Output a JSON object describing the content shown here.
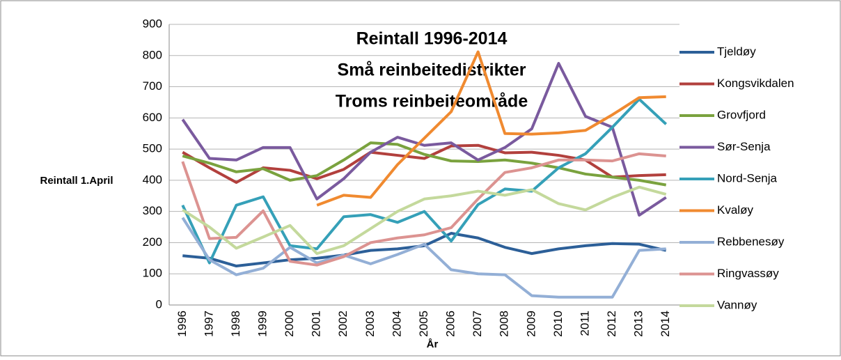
{
  "chart_data": {
    "type": "line",
    "title": [
      "Reintall 1996-2014",
      "Små reinbeitedistrikter",
      "Troms reinbeiteområde"
    ],
    "ylabel": "Reintall 1.April",
    "xlabel": "År",
    "categories": [
      "1996",
      "1997",
      "1998",
      "1999",
      "2000",
      "2001",
      "2002",
      "2003",
      "2004",
      "2005",
      "2006",
      "2007",
      "2008",
      "2009",
      "2010",
      "2011",
      "2012",
      "2013",
      "2014"
    ],
    "ylim": [
      0,
      900
    ],
    "yticks": [
      0,
      100,
      200,
      300,
      400,
      500,
      600,
      700,
      800,
      900
    ],
    "grid": true,
    "legend": "right",
    "series": [
      {
        "name": "Tjeldøy",
        "color": "#2c5f98",
        "values": [
          158,
          150,
          125,
          135,
          145,
          150,
          160,
          175,
          180,
          190,
          230,
          215,
          185,
          165,
          180,
          190,
          197,
          195,
          175
        ]
      },
      {
        "name": "Kongsvikdalen",
        "color": "#b2403d",
        "values": [
          490,
          440,
          393,
          440,
          432,
          405,
          435,
          490,
          480,
          470,
          510,
          512,
          488,
          490,
          480,
          465,
          410,
          415,
          418
        ]
      },
      {
        "name": "Grovfjord",
        "color": "#7aa23e",
        "values": [
          478,
          455,
          427,
          437,
          400,
          415,
          465,
          520,
          515,
          483,
          462,
          460,
          465,
          455,
          440,
          420,
          410,
          400,
          385
        ]
      },
      {
        "name": "Sør-Senja",
        "color": "#7a5a9e",
        "values": [
          595,
          470,
          465,
          505,
          505,
          340,
          405,
          490,
          538,
          512,
          520,
          465,
          505,
          565,
          775,
          605,
          570,
          288,
          345
        ]
      },
      {
        "name": "Nord-Senja",
        "color": "#35a0b8",
        "values": [
          320,
          135,
          320,
          347,
          190,
          180,
          283,
          290,
          265,
          300,
          205,
          322,
          372,
          365,
          440,
          485,
          570,
          660,
          580
        ]
      },
      {
        "name": "Kvaløy",
        "color": "#f08a30",
        "values": [
          null,
          null,
          null,
          null,
          null,
          320,
          352,
          345,
          450,
          535,
          620,
          812,
          550,
          548,
          552,
          560,
          610,
          665,
          668
        ]
      },
      {
        "name": "Rebbenesøy",
        "color": "#93afd6",
        "values": [
          280,
          145,
          97,
          118,
          185,
          135,
          160,
          132,
          162,
          195,
          113,
          100,
          97,
          30,
          25,
          25,
          25,
          175,
          180
        ]
      },
      {
        "name": "Ringvassøy",
        "color": "#dc9391",
        "values": [
          460,
          213,
          217,
          302,
          140,
          128,
          155,
          200,
          215,
          225,
          248,
          340,
          425,
          440,
          465,
          465,
          462,
          485,
          478
        ]
      },
      {
        "name": "Vannøy",
        "color": "#c4d99c",
        "values": [
          305,
          250,
          182,
          218,
          255,
          165,
          190,
          245,
          300,
          340,
          350,
          365,
          352,
          370,
          325,
          305,
          345,
          378,
          355
        ]
      }
    ]
  }
}
